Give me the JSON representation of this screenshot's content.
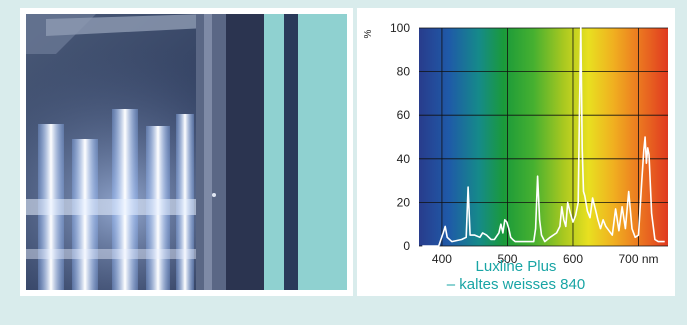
{
  "chart_data": {
    "type": "line",
    "title": "",
    "caption": [
      "Luxline Plus",
      "– kaltes weisses 840"
    ],
    "xlabel": "nm",
    "ylabel": "%",
    "xlim": [
      365,
      745
    ],
    "ylim": [
      0,
      100
    ],
    "xticks": [
      "400",
      "500",
      "600",
      "700 nm"
    ],
    "xtick_values": [
      400,
      500,
      600,
      700
    ],
    "yticks": [
      "0",
      "20",
      "40",
      "60",
      "80",
      "100"
    ],
    "ytick_values": [
      0,
      20,
      40,
      60,
      80,
      100
    ],
    "grid": true,
    "background": "visible spectrum gradient",
    "series": [
      {
        "color": "#ffffff",
        "x": [
          370,
          395,
          402,
          405,
          408,
          415,
          430,
          437,
          440,
          443,
          450,
          458,
          462,
          468,
          475,
          480,
          487,
          490,
          493,
          496,
          499,
          502,
          505,
          508,
          512,
          520,
          530,
          540,
          543,
          546,
          549,
          552,
          557,
          565,
          575,
          580,
          583,
          586,
          589,
          592,
          596,
          600,
          604,
          608,
          610,
          612,
          614,
          616,
          618,
          622,
          626,
          630,
          634,
          638,
          642,
          646,
          650,
          655,
          660,
          665,
          670,
          675,
          680,
          685,
          690,
          695,
          700,
          705,
          708,
          710,
          712,
          714,
          716,
          720,
          725,
          730,
          740
        ],
        "y": [
          0,
          0,
          6,
          9,
          4,
          2,
          3,
          4,
          27,
          5,
          5,
          4,
          6,
          5,
          3,
          3,
          6,
          10,
          6,
          12,
          11,
          8,
          4,
          3,
          2,
          2,
          2,
          2,
          8,
          32,
          12,
          5,
          2,
          4,
          6,
          9,
          18,
          12,
          9,
          20,
          15,
          11,
          14,
          20,
          63,
          101,
          45,
          25,
          23,
          16,
          13,
          22,
          17,
          12,
          8,
          12,
          9,
          7,
          5,
          17,
          7,
          18,
          8,
          25,
          8,
          4,
          5,
          30,
          44,
          50,
          38,
          45,
          42,
          15,
          3,
          2,
          2
        ]
      }
    ]
  },
  "photo": {
    "description_icon": "fluorescent-lamps-photo"
  }
}
